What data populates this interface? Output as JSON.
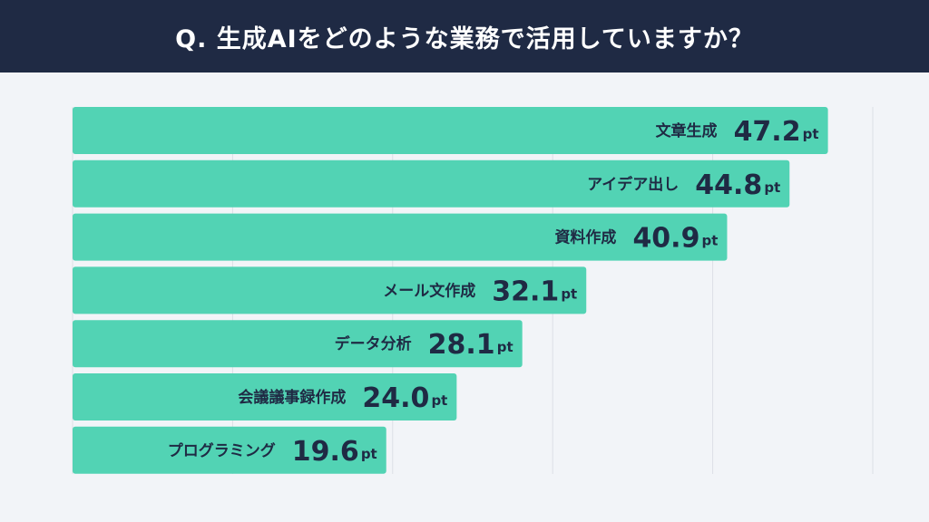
{
  "chart_data": {
    "type": "bar",
    "orientation": "horizontal",
    "title": "Q. 生成AIをどのような業務で活用していますか？",
    "categories": [
      "文章生成",
      "アイデア出し",
      "資料作成",
      "メール文作成",
      "データ分析",
      "会議議事録作成",
      "プログラミング"
    ],
    "values": [
      47.2,
      44.8,
      40.9,
      32.1,
      28.1,
      24.0,
      19.6
    ],
    "value_labels": [
      "47.2",
      "44.8",
      "40.9",
      "32.1",
      "28.1",
      "24.0",
      "19.6"
    ],
    "unit": "pt",
    "xlim": [
      0,
      50
    ],
    "grid": true,
    "grid_step": 10,
    "colors": {
      "bar": "#52d3b4",
      "header": "#1f2a44",
      "background": "#f2f4f8",
      "text": "#1f2a44",
      "grid": "#dcdfe6"
    }
  }
}
